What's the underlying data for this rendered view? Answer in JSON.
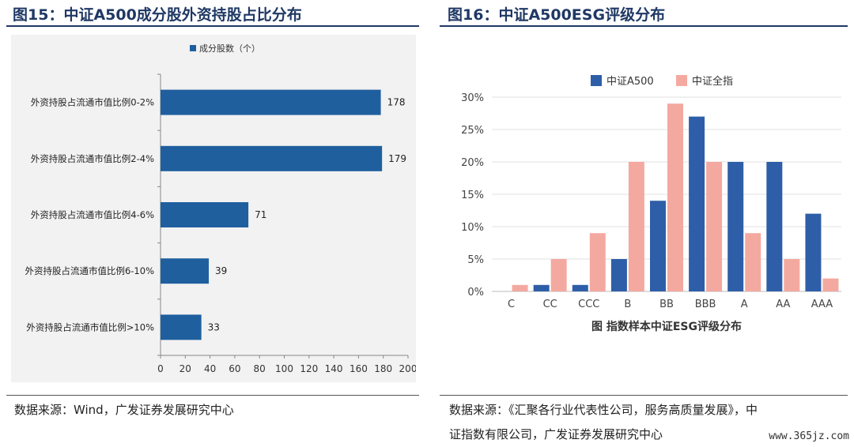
{
  "left_panel": {
    "title": "图15：中证A500成分股外资持股占比分布",
    "source": "数据来源：Wind，广发证券发展研究中心"
  },
  "right_panel": {
    "title": "图16：中证A500ESG评级分布",
    "source_line1": "数据来源：《汇聚各行业代表性公司，服务高质量发展》，中",
    "source_line2": "证指数有限公司，广发证券发展研究中心"
  },
  "watermark": "www.365jz.com",
  "colors": {
    "title": "#1f3864",
    "bar_blue": "#1f5f9e",
    "a500_blue": "#2e5ea8",
    "all_pink": "#f4a9a0"
  },
  "chart_data": [
    {
      "type": "bar",
      "orientation": "horizontal",
      "categories": [
        "外资持股占流通市值比例0-2%",
        "外资持股占流通市值比例2-4%",
        "外资持股占流通市值比例4-6%",
        "外资持股占流通市值比例6-10%",
        "外资持股占流通市值比例>10%"
      ],
      "series": [
        {
          "name": "成分股数（个）",
          "values": [
            178,
            179,
            71,
            39,
            33
          ]
        }
      ],
      "xlim": [
        0,
        200
      ],
      "xticks": [
        "0",
        "20",
        "40",
        "60",
        "80",
        "100",
        "120",
        "140",
        "160",
        "180",
        "200"
      ],
      "legend": "top-center",
      "grid": false
    },
    {
      "type": "bar",
      "categories": [
        "C",
        "CC",
        "CCC",
        "B",
        "BB",
        "BBB",
        "A",
        "AA",
        "AAA"
      ],
      "series": [
        {
          "name": "中证A500",
          "values": [
            0,
            1,
            1,
            5,
            14,
            27,
            20,
            20,
            12
          ]
        },
        {
          "name": "中证全指",
          "values": [
            1,
            5,
            9,
            20,
            29,
            20,
            9,
            5,
            2
          ]
        }
      ],
      "ylim": [
        0,
        30
      ],
      "yticks": [
        "0%",
        "5%",
        "10%",
        "15%",
        "20%",
        "25%",
        "30%"
      ],
      "caption": "图 指数样本中证ESG评级分布",
      "legend": "top-center",
      "grid": true
    }
  ]
}
